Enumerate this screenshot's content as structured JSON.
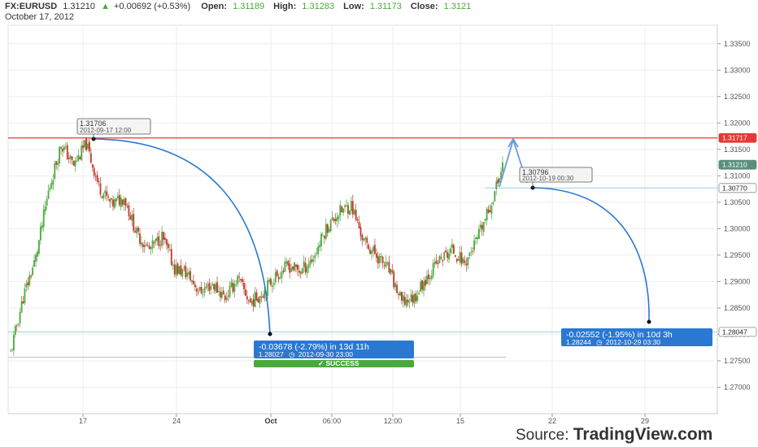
{
  "header": {
    "symbol": "FX:EURUSD",
    "last": "1.31210",
    "change": "+0.00692 (+0.53%)",
    "open_label": "Open:",
    "open_value": "1.31189",
    "high_label": "High:",
    "high_value": "1.31283",
    "low_label": "Low:",
    "low_value": "1.31173",
    "close_label": "Close:",
    "close_value": "1.3121",
    "date": "October 17, 2012"
  },
  "colors": {
    "up": "#4aa93c",
    "down": "#c0392b",
    "resistance": "#e53935",
    "support": "#8fd3dc",
    "measure": "#2b78d3",
    "success": "#4aa93c",
    "projection": "#6a9bd8"
  },
  "icons": {
    "up_arrow": "triangle-up-icon",
    "clock": "clock-icon",
    "check": "check-icon"
  },
  "chart_data": {
    "type": "line",
    "price_type": "candlestick",
    "ylim": [
      1.265,
      1.3385
    ],
    "y_ticks": [
      "1.33500",
      "1.33000",
      "1.32500",
      "1.32000",
      "1.31500",
      "1.31000",
      "1.30500",
      "1.30000",
      "1.29500",
      "1.29000",
      "1.28500",
      "1.28000",
      "1.27500",
      "1.27000"
    ],
    "x_ticks": [
      {
        "label": "17",
        "bold": false
      },
      {
        "label": "24",
        "bold": false
      },
      {
        "label": "Oct",
        "bold": true
      },
      {
        "label": "06:00",
        "bold": false
      },
      {
        "label": "12:00",
        "bold": false
      },
      {
        "label": "15",
        "bold": false
      },
      {
        "label": "22",
        "bold": false
      },
      {
        "label": "29",
        "bold": false
      }
    ],
    "grid": true,
    "series": [
      {
        "name": "",
        "points": [
          [
            "2012-09-11",
            1.2765
          ],
          [
            "2012-09-12",
            1.287
          ],
          [
            "2012-09-13",
            1.2945
          ],
          [
            "2012-09-14",
            1.307
          ],
          [
            "2012-09-15",
            1.316
          ],
          [
            "2012-09-16",
            1.312
          ],
          [
            "2012-09-17",
            1.316
          ],
          [
            "2012-09-18",
            1.308
          ],
          [
            "2012-09-19",
            1.3045
          ],
          [
            "2012-09-20",
            1.306
          ],
          [
            "2012-09-21",
            1.299
          ],
          [
            "2012-09-22",
            1.296
          ],
          [
            "2012-09-23",
            1.2985
          ],
          [
            "2012-09-24",
            1.2925
          ],
          [
            "2012-09-25",
            1.2915
          ],
          [
            "2012-09-26",
            1.288
          ],
          [
            "2012-09-27",
            1.2895
          ],
          [
            "2012-09-28",
            1.287
          ],
          [
            "2012-09-29",
            1.2905
          ],
          [
            "2012-09-30",
            1.286
          ],
          [
            "2012-10-01",
            1.288
          ],
          [
            "2012-10-02",
            1.291
          ],
          [
            "2012-10-03",
            1.293
          ],
          [
            "2012-10-04",
            1.292
          ],
          [
            "2012-10-05",
            1.2945
          ],
          [
            "2012-10-06",
            1.3
          ],
          [
            "2012-10-07",
            1.303
          ],
          [
            "2012-10-08",
            1.3045
          ],
          [
            "2012-10-09",
            1.2975
          ],
          [
            "2012-10-10",
            1.295
          ],
          [
            "2012-10-11",
            1.292
          ],
          [
            "2012-10-12",
            1.286
          ],
          [
            "2012-10-13",
            1.287
          ],
          [
            "2012-10-14",
            1.291
          ],
          [
            "2012-10-15",
            1.294
          ],
          [
            "2012-10-16",
            1.296
          ],
          [
            "2012-10-17",
            1.2935
          ],
          [
            "2012-10-18",
            1.298
          ],
          [
            "2012-10-19",
            1.304
          ],
          [
            "2012-10-20",
            1.3121
          ]
        ]
      }
    ],
    "horizontal_levels": [
      {
        "value": 1.31717,
        "label": "1.31717",
        "color": "#e53935"
      },
      {
        "value": 1.3121,
        "label": "1.31210",
        "color": "#5a8f7b"
      },
      {
        "value": 1.3077,
        "label": "1.30770",
        "color": "#8fd3dc"
      },
      {
        "value": 1.28047,
        "label": "1.28047",
        "color": "#8fd3dc"
      }
    ],
    "callouts": [
      {
        "title": "1.31706",
        "sub": "2012-09-17 12:00"
      },
      {
        "title": "1.30796",
        "sub": "2012-10-19 00:30"
      }
    ],
    "measurements": [
      {
        "line1": "-0.03678 (-2.79%) in 13d 11h",
        "line2_price": "1.28027",
        "line2_time": "2012-09-30  23:00"
      },
      {
        "line1": "-0.02552 (-1.95%) in 10d 3h",
        "line2_price": "1.28244",
        "line2_time": "2012-10-29  03:30"
      }
    ],
    "success_label": "SUCCESS"
  },
  "source": {
    "prefix": "Source: ",
    "brand": "TradingView.com"
  }
}
